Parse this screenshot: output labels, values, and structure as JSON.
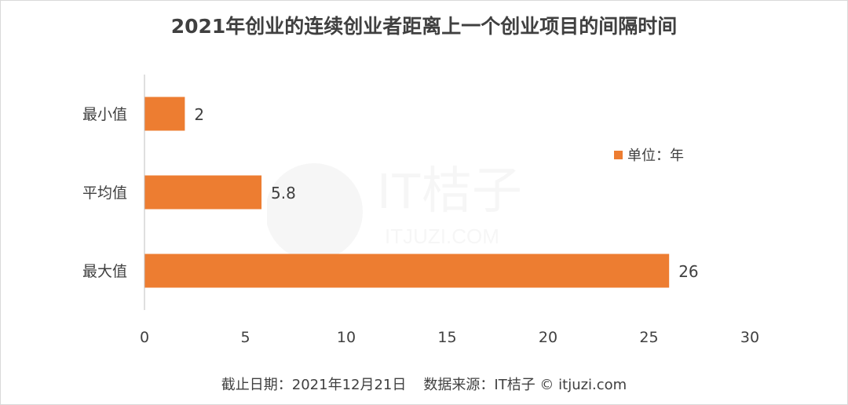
{
  "chart_data": {
    "type": "bar",
    "orientation": "horizontal",
    "title": "2021年创业的连续创业者距离上一个创业项目的间隔时间",
    "categories": [
      "最小值",
      "平均值",
      "最大值"
    ],
    "values": [
      2,
      5.8,
      26
    ],
    "data_labels": [
      "2",
      "5.8",
      "26"
    ],
    "x_ticks": [
      "0",
      "5",
      "10",
      "15",
      "20",
      "25",
      "30"
    ],
    "xlim": [
      0,
      30
    ],
    "legend": {
      "label": "单位：年",
      "placement": "right"
    },
    "grid": false,
    "bar_color": "#ED7D31"
  },
  "footer": {
    "date": "截止日期：2021年12月21日",
    "source": "数据来源：IT桔子 © itjuzi.com"
  },
  "watermark": {
    "brand": "IT桔子",
    "domain": "ITJUZI.COM"
  },
  "colors": {
    "text": "#404040",
    "axis": "#bfbfbf"
  }
}
